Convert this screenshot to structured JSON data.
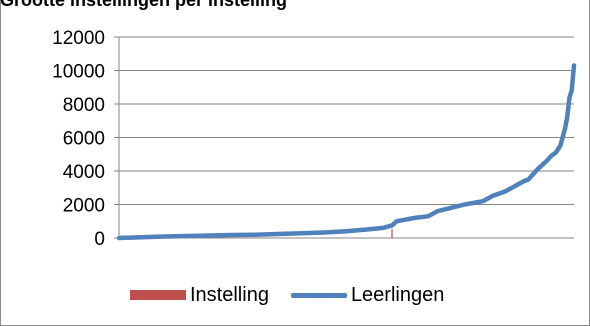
{
  "chart_data": {
    "type": "line",
    "title": "Grootte instellingen per... (cut off)",
    "title_visible_text": "Grootte instellingen per instelling",
    "xlabel": "",
    "ylabel": "",
    "ylim": [
      0,
      12000
    ],
    "yticks": [
      "0",
      "2000",
      "4000",
      "6000",
      "8000",
      "10000",
      "12000"
    ],
    "grid": true,
    "legend_position": "bottom",
    "series": [
      {
        "name": "Instelling",
        "kind": "bar",
        "color": "#c0504d",
        "points": [
          [
            60,
            550
          ]
        ]
      },
      {
        "name": "Leerlingen",
        "kind": "line",
        "color": "#4f81bd",
        "points": [
          [
            0,
            0
          ],
          [
            5,
            50
          ],
          [
            10,
            90
          ],
          [
            15,
            120
          ],
          [
            20,
            150
          ],
          [
            25,
            180
          ],
          [
            30,
            200
          ],
          [
            35,
            240
          ],
          [
            40,
            280
          ],
          [
            45,
            330
          ],
          [
            50,
            400
          ],
          [
            55,
            520
          ],
          [
            58,
            600
          ],
          [
            60,
            750
          ],
          [
            61,
            1000
          ],
          [
            62,
            1050
          ],
          [
            65,
            1200
          ],
          [
            68,
            1300
          ],
          [
            70,
            1600
          ],
          [
            73,
            1800
          ],
          [
            76,
            2000
          ],
          [
            80,
            2200
          ],
          [
            82,
            2500
          ],
          [
            85,
            2800
          ],
          [
            87,
            3100
          ],
          [
            89,
            3400
          ],
          [
            90,
            3500
          ],
          [
            92,
            4100
          ],
          [
            94,
            4600
          ],
          [
            95,
            4900
          ],
          [
            96,
            5100
          ],
          [
            97,
            5500
          ],
          [
            98,
            6500
          ],
          [
            98.5,
            7200
          ],
          [
            99,
            8400
          ],
          [
            99.5,
            8800
          ],
          [
            100,
            10300
          ]
        ]
      }
    ]
  },
  "title_text": "Grootte instellingen per instelling",
  "legend": {
    "items": [
      {
        "label": "Instelling",
        "color": "#c0504d"
      },
      {
        "label": "Leerlingen",
        "color": "#4f81bd"
      }
    ]
  }
}
